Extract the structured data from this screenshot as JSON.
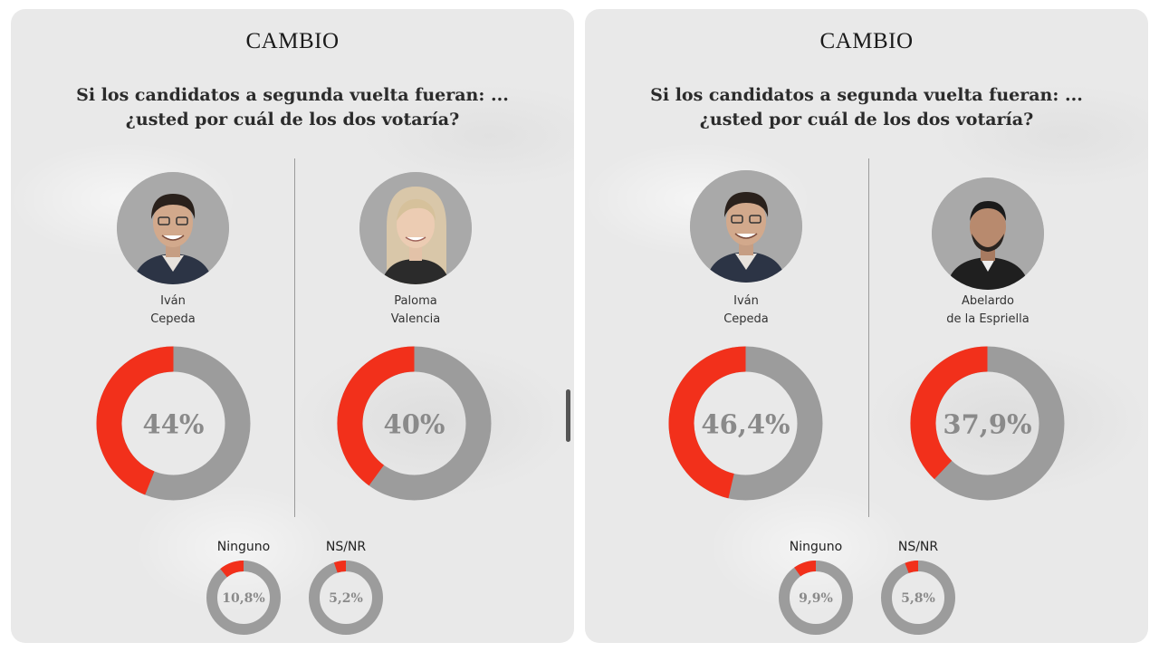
{
  "colors": {
    "accent": "#f2301b",
    "ring": "#9c9c9c",
    "value_text": "#8a8a8a"
  },
  "panels": [
    {
      "brand": "CAMBIO",
      "question": [
        "Si los candidatos a segunda vuelta fueran: ...",
        "¿usted por cuál de los dos votaría?"
      ],
      "candidates": [
        {
          "name_lines": [
            "Iván",
            "Cepeda"
          ],
          "value_label": "44%"
        },
        {
          "name_lines": [
            "Paloma",
            "Valencia"
          ],
          "value_label": "40%"
        }
      ],
      "others": [
        {
          "label": "Ninguno",
          "value_label": "10,8%"
        },
        {
          "label": "NS/NR",
          "value_label": "5,2%"
        }
      ]
    },
    {
      "brand": "CAMBIO",
      "question": [
        "Si los candidatos a segunda vuelta fueran: ...",
        "¿usted por cuál de los dos votaría?"
      ],
      "candidates": [
        {
          "name_lines": [
            "Iván",
            "Cepeda"
          ],
          "value_label": "46,4%"
        },
        {
          "name_lines": [
            "Abelardo",
            "de la Espriella"
          ],
          "value_label": "37,9%"
        }
      ],
      "others": [
        {
          "label": "Ninguno",
          "value_label": "9,9%"
        },
        {
          "label": "NS/NR",
          "value_label": "5,8%"
        }
      ]
    }
  ],
  "chart_data": [
    {
      "type": "pie",
      "categories": [
        "Iván Cepeda",
        "Paloma Valencia",
        "Ninguno",
        "NS/NR"
      ],
      "values": [
        44,
        40,
        10.8,
        5.2
      ],
      "title": "Si los candidatos a segunda vuelta fueran: ... ¿usted por cuál de los dos votaría?"
    },
    {
      "type": "pie",
      "categories": [
        "Iván Cepeda",
        "Abelardo de la Espriella",
        "Ninguno",
        "NS/NR"
      ],
      "values": [
        46.4,
        37.9,
        9.9,
        5.8
      ],
      "title": "Si los candidatos a segunda vuelta fueran: ... ¿usted por cuál de los dos votaría?"
    }
  ]
}
